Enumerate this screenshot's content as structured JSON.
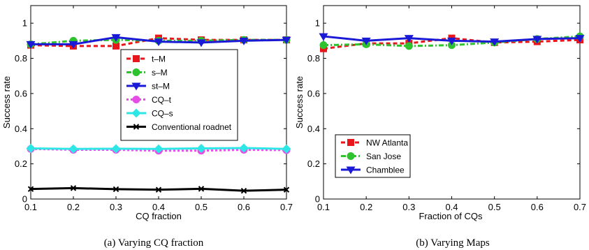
{
  "chart_data": [
    {
      "type": "line",
      "caption": "(a)  Varying CQ fraction",
      "xlabel": "CQ fraction",
      "ylabel": "Success rate",
      "xlim": [
        0.1,
        0.7
      ],
      "ylim": [
        0,
        1.1
      ],
      "xticks": [
        "0.1",
        "0.2",
        "0.3",
        "0.4",
        "0.5",
        "0.6",
        "0.7"
      ],
      "yticks": [
        "0",
        "0.2",
        "0.4",
        "0.6",
        "0.8",
        "1"
      ],
      "x": [
        0.1,
        0.2,
        0.3,
        0.4,
        0.5,
        0.6,
        0.7
      ],
      "grid": false,
      "legend": "center-right",
      "series": [
        {
          "name": "t–M",
          "values": [
            0.875,
            0.87,
            0.87,
            0.915,
            0.905,
            0.905,
            0.905
          ],
          "color": "#e8151b",
          "dash": "6,4",
          "marker": "square"
        },
        {
          "name": "s–M",
          "values": [
            0.88,
            0.9,
            0.905,
            0.9,
            0.9,
            0.905,
            0.905
          ],
          "color": "#2ec22e",
          "dash": "7,3,2,3",
          "marker": "circle"
        },
        {
          "name": "st–M",
          "values": [
            0.88,
            0.88,
            0.92,
            0.895,
            0.89,
            0.9,
            0.905
          ],
          "color": "#1a1ad6",
          "dash": "",
          "marker": "triangle-down"
        },
        {
          "name": "CQ–t",
          "values": [
            0.285,
            0.28,
            0.28,
            0.275,
            0.275,
            0.28,
            0.278
          ],
          "color": "#e64de6",
          "dash": "3,3",
          "marker": "circle"
        },
        {
          "name": "CQ–s",
          "values": [
            0.288,
            0.285,
            0.286,
            0.285,
            0.288,
            0.29,
            0.285
          ],
          "color": "#2de6e6",
          "dash": "",
          "marker": "diamond"
        },
        {
          "name": "Conventional roadnet",
          "values": [
            0.057,
            0.062,
            0.056,
            0.053,
            0.058,
            0.047,
            0.053
          ],
          "color": "#000000",
          "dash": "",
          "marker": "x"
        }
      ]
    },
    {
      "type": "line",
      "caption": "(b)  Varying Maps",
      "xlabel": "Fraction of CQs",
      "ylabel": "Success rate",
      "xlim": [
        0.1,
        0.7
      ],
      "ylim": [
        0,
        1.1
      ],
      "xticks": [
        "0.1",
        "0.2",
        "0.3",
        "0.4",
        "0.5",
        "0.6",
        "0.7"
      ],
      "yticks": [
        "0",
        "0.2",
        "0.4",
        "0.6",
        "0.8",
        "1"
      ],
      "x": [
        0.1,
        0.2,
        0.3,
        0.4,
        0.5,
        0.6,
        0.7
      ],
      "grid": false,
      "legend": "lower-left",
      "series": [
        {
          "name": "NW Atlanta",
          "values": [
            0.855,
            0.885,
            0.885,
            0.915,
            0.89,
            0.895,
            0.905
          ],
          "color": "#e8151b",
          "dash": "6,4",
          "marker": "square"
        },
        {
          "name": "San Jose",
          "values": [
            0.875,
            0.88,
            0.87,
            0.875,
            0.89,
            0.91,
            0.925
          ],
          "color": "#2ec22e",
          "dash": "7,3,2,3",
          "marker": "circle"
        },
        {
          "name": "Chamblee",
          "values": [
            0.925,
            0.9,
            0.915,
            0.9,
            0.895,
            0.91,
            0.915
          ],
          "color": "#1a1ad6",
          "dash": "",
          "marker": "triangle-down"
        }
      ]
    }
  ]
}
